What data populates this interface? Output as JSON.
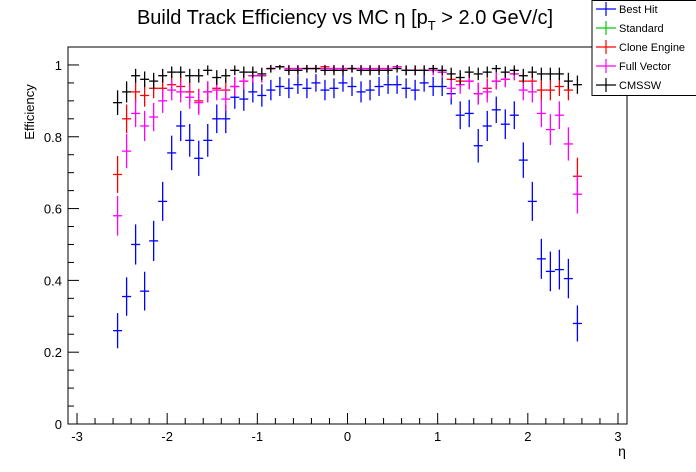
{
  "chart_data": {
    "type": "scatter",
    "title": "Build Track Efficiency vs MC η [p",
    "title_sub": "T",
    "title_tail": " > 2.0 GeV/c]",
    "xlabel": "η",
    "ylabel": "Efficiency",
    "xlim": [
      -3.1,
      3.1
    ],
    "ylim": [
      0,
      1.05
    ],
    "xticks": [
      "-3",
      "-2",
      "-1",
      "0",
      "1",
      "2",
      "3"
    ],
    "xtick_values": [
      -3,
      -2,
      -1,
      0,
      1,
      2,
      3
    ],
    "yticks": [
      "0",
      "0.2",
      "0.4",
      "0.6",
      "0.8",
      "1"
    ],
    "ytick_values": [
      0,
      0.2,
      0.4,
      0.6,
      0.8,
      1
    ],
    "legend_position": "top-right",
    "bin_width": 0.1,
    "x": [
      -2.55,
      -2.45,
      -2.35,
      -2.25,
      -2.15,
      -2.05,
      -1.95,
      -1.85,
      -1.75,
      -1.65,
      -1.55,
      -1.45,
      -1.35,
      -1.25,
      -1.15,
      -1.05,
      -0.95,
      -0.85,
      -0.75,
      -0.65,
      -0.55,
      -0.45,
      -0.35,
      -0.25,
      -0.15,
      -0.05,
      0.05,
      0.15,
      0.25,
      0.35,
      0.45,
      0.55,
      0.65,
      0.75,
      0.85,
      0.95,
      1.05,
      1.15,
      1.25,
      1.35,
      1.45,
      1.55,
      1.65,
      1.75,
      1.85,
      1.95,
      2.05,
      2.15,
      2.25,
      2.35,
      2.45,
      2.55
    ],
    "series": [
      {
        "name": "Best Hit",
        "color": "#0000ff",
        "values": [
          0.26,
          0.355,
          0.5,
          0.37,
          0.51,
          0.62,
          0.755,
          0.83,
          0.79,
          0.74,
          0.79,
          0.85,
          0.85,
          0.91,
          0.905,
          0.925,
          0.915,
          0.93,
          0.94,
          0.935,
          0.945,
          0.935,
          0.95,
          0.93,
          0.935,
          0.95,
          0.94,
          0.925,
          0.93,
          0.94,
          0.945,
          0.945,
          0.935,
          0.93,
          0.95,
          0.94,
          0.94,
          0.92,
          0.86,
          0.865,
          0.775,
          0.83,
          0.875,
          0.835,
          0.86,
          0.735,
          0.62,
          0.46,
          0.425,
          0.43,
          0.405,
          0.28
        ]
      },
      {
        "name": "Standard",
        "color": "#00cc00",
        "values": []
      },
      {
        "name": "Clone Engine",
        "color": "#ff0000",
        "values": [
          0.695,
          0.85,
          0.925,
          0.915,
          0.935,
          0.935,
          0.945,
          0.94,
          0.925,
          0.9,
          0.925,
          0.935,
          0.93,
          0.94,
          0.955,
          0.97,
          0.97,
          0.99,
          0.995,
          0.99,
          0.99,
          0.99,
          0.99,
          0.995,
          0.99,
          0.99,
          0.99,
          0.99,
          0.985,
          0.99,
          0.99,
          0.995,
          0.985,
          0.985,
          0.985,
          0.985,
          0.98,
          0.96,
          0.955,
          0.955,
          0.92,
          0.935,
          0.955,
          0.96,
          0.975,
          0.955,
          0.955,
          0.93,
          0.93,
          0.94,
          0.93,
          0.69
        ]
      },
      {
        "name": "Full Vector",
        "color": "#ff00ff",
        "values": [
          0.58,
          0.76,
          0.865,
          0.83,
          0.855,
          0.9,
          0.93,
          0.925,
          0.91,
          0.895,
          0.925,
          0.93,
          0.905,
          0.94,
          0.955,
          0.97,
          0.97,
          0.99,
          0.995,
          0.99,
          0.99,
          0.99,
          0.99,
          0.99,
          0.99,
          0.99,
          0.99,
          0.99,
          0.99,
          0.99,
          0.99,
          0.995,
          0.985,
          0.985,
          0.985,
          0.985,
          0.98,
          0.935,
          0.945,
          0.955,
          0.92,
          0.925,
          0.955,
          0.96,
          0.975,
          0.93,
          0.925,
          0.865,
          0.82,
          0.86,
          0.78,
          0.64
        ]
      },
      {
        "name": "CMSSW",
        "color": "#000000",
        "values": [
          0.895,
          0.925,
          0.97,
          0.96,
          0.955,
          0.97,
          0.98,
          0.98,
          0.97,
          0.97,
          0.985,
          0.965,
          0.97,
          0.985,
          0.98,
          0.98,
          0.975,
          0.99,
          0.995,
          0.985,
          0.985,
          0.99,
          0.99,
          0.985,
          0.985,
          0.985,
          0.99,
          0.985,
          0.985,
          0.985,
          0.985,
          0.99,
          0.985,
          0.985,
          0.985,
          0.99,
          0.985,
          0.975,
          0.965,
          0.98,
          0.975,
          0.98,
          0.99,
          0.98,
          0.985,
          0.97,
          0.98,
          0.975,
          0.975,
          0.975,
          0.955,
          0.945
        ]
      }
    ]
  }
}
